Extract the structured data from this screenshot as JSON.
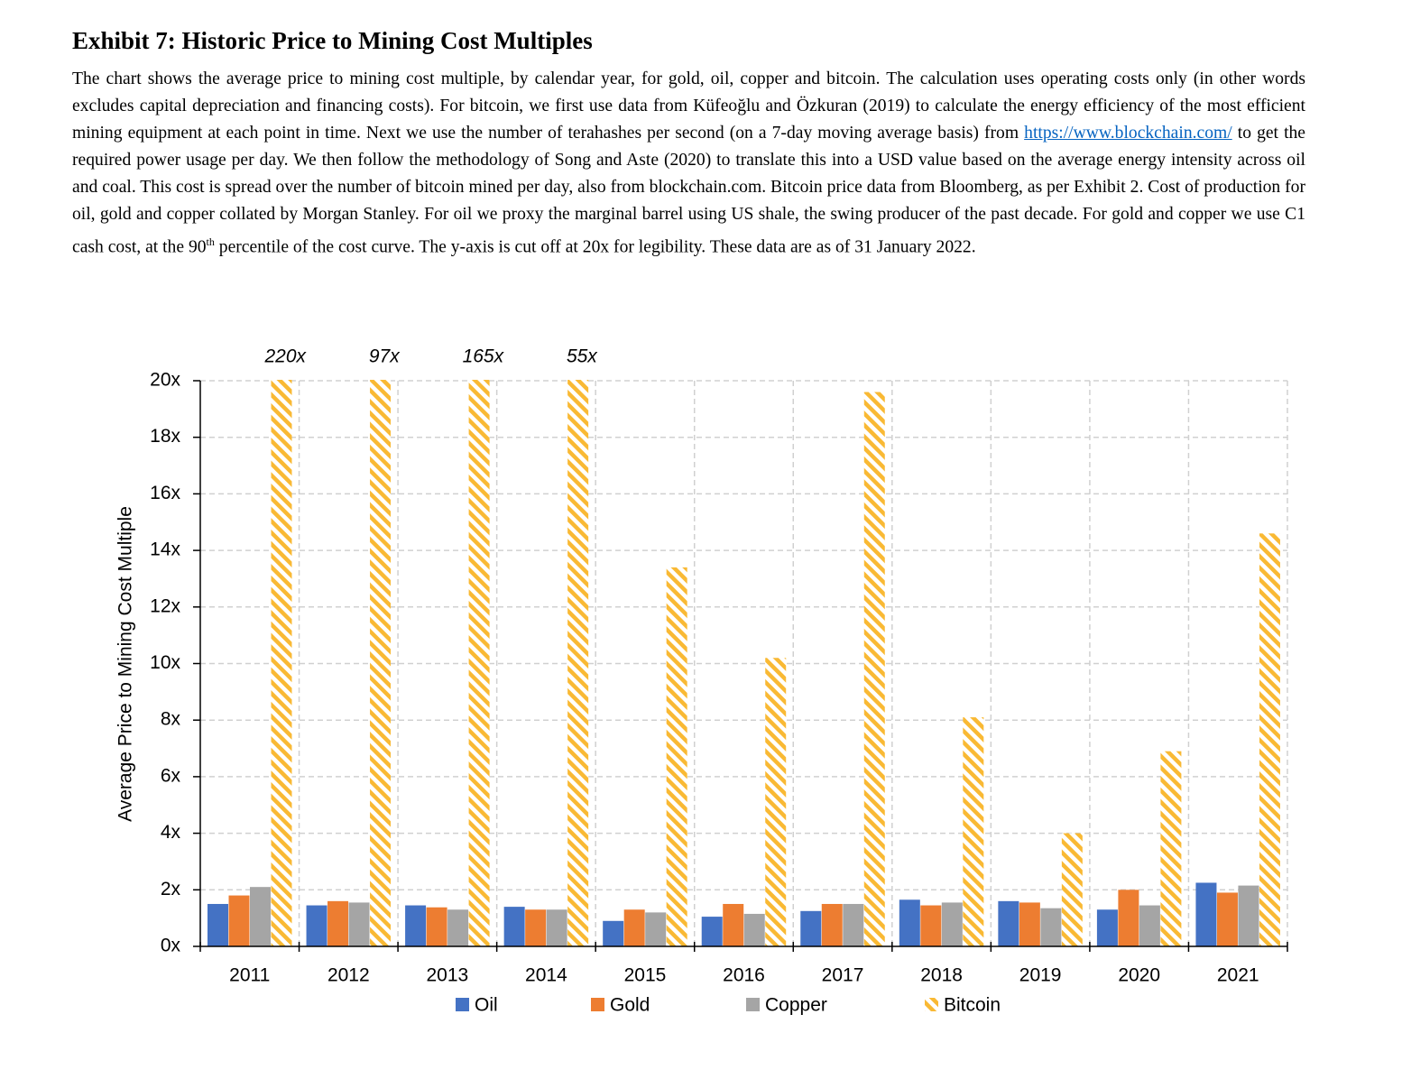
{
  "header": {
    "title": "Exhibit 7: Historic Price to Mining Cost Multiples",
    "description": {
      "text1": "The chart shows the average price to mining cost multiple, by calendar year, for gold, oil, copper and bitcoin. The calculation uses operating costs only (in other words excludes capital depreciation and financing costs). For bitcoin, we first use data from Küfeoğlu and Özkuran (2019) to calculate the energy efficiency of the most efficient mining equipment at each point in time. Next we use the number of terahashes per second (on a 7-day moving average basis) from ",
      "link": "https://www.blockchain.com/",
      "text2": " to get the required power usage per day. We then follow the methodology of Song and Aste (2020) to translate this into a USD value based on the average energy intensity across oil and coal. This cost is spread over the number of bitcoin mined per day, also from blockchain.com. Bitcoin price data from Bloomberg, as per Exhibit 2. Cost of production for oil, gold and copper collated by Morgan Stanley. For oil we proxy the marginal barrel using US shale, the swing producer of the past decade. For gold and copper we use C1 cash cost, at the 90",
      "sup": "th",
      "text3": " percentile of the cost curve. The y-axis is cut off at 20x for legibility. These data are as of 31 January 2022."
    }
  },
  "chart_data": {
    "type": "bar",
    "y_label": "Average Price to Mining Cost Multiple",
    "categories": [
      "2011",
      "2012",
      "2013",
      "2014",
      "2015",
      "2016",
      "2017",
      "2018",
      "2019",
      "2020",
      "2021"
    ],
    "series": [
      {
        "name": "Oil",
        "color": "#4472c4",
        "values": [
          1.5,
          1.45,
          1.45,
          1.4,
          0.9,
          1.05,
          1.25,
          1.65,
          1.6,
          1.3,
          2.25
        ]
      },
      {
        "name": "Gold",
        "color": "#ed7d31",
        "values": [
          1.8,
          1.6,
          1.38,
          1.3,
          1.3,
          1.5,
          1.5,
          1.45,
          1.55,
          2.0,
          1.9
        ]
      },
      {
        "name": "Copper",
        "color": "#a5a5a5",
        "values": [
          2.1,
          1.55,
          1.3,
          1.3,
          1.2,
          1.15,
          1.5,
          1.55,
          1.35,
          1.45,
          2.15
        ]
      },
      {
        "name": "Bitcoin",
        "color": "#f9b934",
        "hatch": true,
        "values": [
          220,
          97,
          165,
          55,
          13.4,
          10.2,
          19.6,
          8.1,
          4.0,
          6.9,
          14.6
        ],
        "value_labels": [
          "220x",
          "97x",
          "165x",
          "55x",
          null,
          null,
          null,
          null,
          null,
          null,
          null
        ]
      }
    ],
    "ylim": [
      0,
      20
    ],
    "yticks": [
      {
        "value": 0,
        "label": "0x"
      },
      {
        "value": 2,
        "label": "2x"
      },
      {
        "value": 4,
        "label": "4x"
      },
      {
        "value": 6,
        "label": "6x"
      },
      {
        "value": 8,
        "label": "8x"
      },
      {
        "value": 10,
        "label": "10x"
      },
      {
        "value": 12,
        "label": "12x"
      },
      {
        "value": 14,
        "label": "14x"
      },
      {
        "value": 16,
        "label": "16x"
      },
      {
        "value": 18,
        "label": "18x"
      },
      {
        "value": 20,
        "label": "20x"
      }
    ],
    "grid": true,
    "legend": "bottom"
  }
}
